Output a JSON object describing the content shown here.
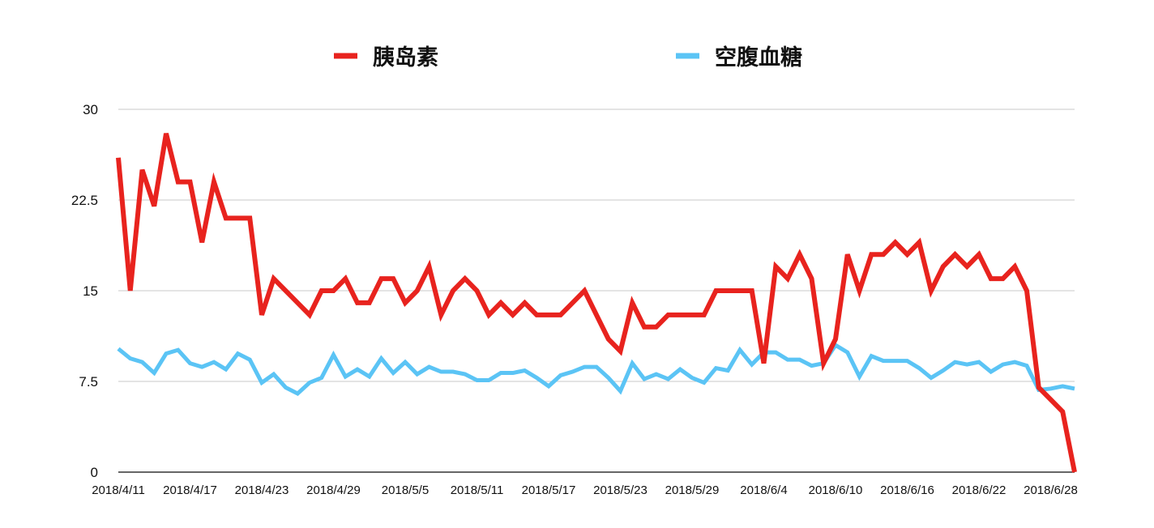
{
  "chart_data": {
    "type": "line",
    "title": "",
    "xlabel": "",
    "ylabel": "",
    "ylim": [
      0,
      30
    ],
    "yticks": [
      "0",
      "7.5",
      "15",
      "22.5",
      "30"
    ],
    "ytick_values": [
      0,
      7.5,
      15,
      22.5,
      30
    ],
    "xtick_labels": [
      "2018/4/11",
      "2018/4/17",
      "2018/4/23",
      "2018/4/29",
      "2018/5/5",
      "2018/5/11",
      "2018/5/17",
      "2018/5/23",
      "2018/5/29",
      "2018/6/4",
      "2018/6/10",
      "2018/6/16",
      "2018/6/22",
      "2018/6/28"
    ],
    "grid": true,
    "legend_position": "top",
    "series": [
      {
        "name": "胰岛素",
        "color": "#e8231e",
        "values": [
          26,
          15,
          25,
          22,
          28,
          24,
          24,
          19,
          24,
          21,
          21,
          21,
          13,
          16,
          15,
          14,
          13,
          15,
          15,
          16,
          14,
          14,
          16,
          16,
          14,
          15,
          17,
          13,
          15,
          16,
          15,
          13,
          14,
          13,
          14,
          13,
          13,
          13,
          14,
          15,
          13,
          11,
          10,
          14,
          12,
          12,
          13,
          13,
          13,
          13,
          15,
          15,
          15,
          15,
          9,
          17,
          16,
          18,
          16,
          9,
          11,
          18,
          15,
          18,
          18,
          19,
          18,
          19,
          15,
          17,
          18,
          17,
          18,
          16,
          16,
          17,
          15,
          7,
          6,
          5,
          0
        ]
      },
      {
        "name": "空腹血糖",
        "color": "#5bc4f5",
        "values": [
          10.2,
          9.4,
          9.1,
          8.2,
          9.8,
          10.1,
          9.0,
          8.7,
          9.1,
          8.5,
          9.8,
          9.3,
          7.4,
          8.1,
          7.0,
          6.5,
          7.4,
          7.8,
          9.7,
          7.9,
          8.5,
          7.9,
          9.4,
          8.2,
          9.1,
          8.1,
          8.7,
          8.3,
          8.3,
          8.1,
          7.6,
          7.6,
          8.2,
          8.2,
          8.4,
          7.8,
          7.1,
          8.0,
          8.3,
          8.7,
          8.7,
          7.8,
          6.7,
          9.0,
          7.7,
          8.1,
          7.7,
          8.5,
          7.8,
          7.4,
          8.6,
          8.4,
          10.1,
          8.9,
          9.9,
          9.9,
          9.3,
          9.3,
          8.8,
          9.0,
          10.5,
          9.9,
          7.9,
          9.6,
          9.2,
          9.2,
          9.2,
          8.6,
          7.8,
          8.4,
          9.1,
          8.9,
          9.1,
          8.3,
          8.9,
          9.1,
          8.8,
          6.8,
          6.9,
          7.1,
          6.9
        ]
      }
    ]
  }
}
